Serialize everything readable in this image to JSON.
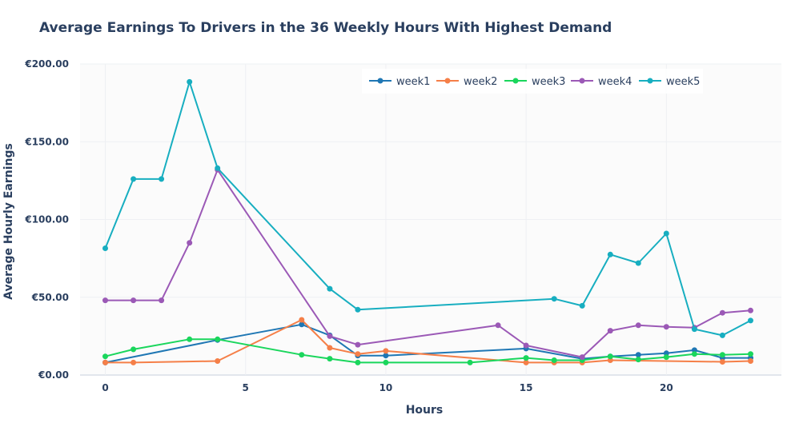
{
  "chart_data": {
    "type": "line",
    "title": "Average Earnings To Drivers in the 36 Weekly Hours With Highest Demand",
    "xlabel": "Hours",
    "ylabel": "Average Hourly Earnings",
    "xlim": [
      -0.9,
      24.1
    ],
    "ylim": [
      0,
      200
    ],
    "x_ticks": [
      0,
      5,
      10,
      15,
      20
    ],
    "y_ticks": [
      0,
      50,
      100,
      150,
      200
    ],
    "y_tick_labels": [
      "€0.00",
      "€50.00",
      "€100.00",
      "€150.00",
      "€200.00"
    ],
    "grid": true,
    "legend_position": "top-right",
    "series": [
      {
        "name": "week1",
        "color": "#1f77b4",
        "x": [
          0,
          4,
          7,
          8,
          9,
          10,
          15,
          17,
          18,
          19,
          20,
          21,
          22,
          23
        ],
        "y": [
          8,
          22.5,
          32.5,
          25.5,
          12.5,
          12.5,
          17,
          10.5,
          12,
          13,
          14,
          16,
          11,
          11
        ]
      },
      {
        "name": "week2",
        "color": "#f57f48",
        "x": [
          0,
          1,
          4,
          7,
          8,
          9,
          10,
          15,
          16,
          17,
          18,
          22,
          23
        ],
        "y": [
          8,
          8,
          9,
          35.5,
          17.5,
          13.5,
          15.5,
          8,
          8,
          8,
          9.5,
          8.5,
          9
        ]
      },
      {
        "name": "week3",
        "color": "#1ad65c",
        "x": [
          0,
          1,
          3,
          4,
          7,
          8,
          9,
          10,
          13,
          15,
          16,
          17,
          18,
          19,
          20,
          21,
          22,
          23
        ],
        "y": [
          12,
          16.5,
          23,
          23,
          13,
          10.5,
          8,
          8,
          8,
          11,
          9.5,
          9.5,
          12,
          10,
          11.5,
          13.5,
          13,
          13.5
        ]
      },
      {
        "name": "week4",
        "color": "#9b59b6",
        "x": [
          0,
          1,
          2,
          3,
          4,
          8,
          9,
          14,
          15,
          17,
          18,
          19,
          20,
          21,
          22,
          23
        ],
        "y": [
          48,
          48,
          48,
          85,
          132,
          25,
          19.5,
          32,
          19,
          11.5,
          28.5,
          32,
          31,
          30.5,
          40,
          41.5
        ]
      },
      {
        "name": "week5",
        "color": "#17aec0",
        "x": [
          0,
          1,
          2,
          3,
          4,
          8,
          9,
          16,
          17,
          18,
          19,
          20,
          21,
          22,
          23
        ],
        "y": [
          81.5,
          126,
          126,
          188.5,
          133,
          55.5,
          42,
          49,
          44.5,
          77.5,
          72,
          91,
          29.5,
          25.5,
          35
        ]
      }
    ]
  }
}
